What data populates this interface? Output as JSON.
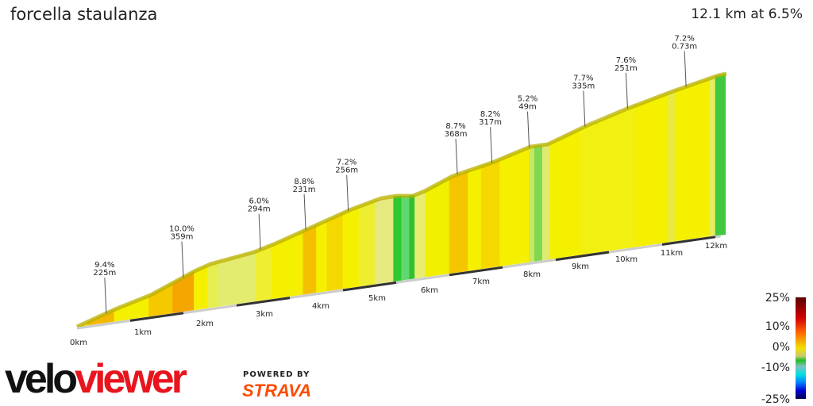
{
  "header": {
    "title": "forcella staulanza",
    "summary": "12.1 km at 6.5%"
  },
  "chart_data": {
    "type": "area",
    "title": "forcella staulanza",
    "distance_km": 12.1,
    "avg_gradient_pct": 6.5,
    "x_ticks": [
      "0km",
      "1km",
      "2km",
      "3km",
      "4km",
      "5km",
      "6km",
      "7km",
      "8km",
      "9km",
      "10km",
      "11km",
      "12km"
    ],
    "annotations": [
      {
        "km": 0.55,
        "gradient": "9.4%",
        "length": "225m"
      },
      {
        "km": 2.0,
        "gradient": "10.0%",
        "length": "359m"
      },
      {
        "km": 3.45,
        "gradient": "6.0%",
        "length": "294m"
      },
      {
        "km": 4.3,
        "gradient": "8.8%",
        "length": "231m"
      },
      {
        "km": 5.1,
        "gradient": "7.2%",
        "length": "256m"
      },
      {
        "km": 7.15,
        "gradient": "8.7%",
        "length": "368m"
      },
      {
        "km": 7.8,
        "gradient": "8.2%",
        "length": "317m"
      },
      {
        "km": 8.5,
        "gradient": "5.2%",
        "length": "49m"
      },
      {
        "km": 9.55,
        "gradient": "7.7%",
        "length": "335m"
      },
      {
        "km": 10.35,
        "gradient": "7.6%",
        "length": "251m"
      },
      {
        "km": 11.45,
        "gradient": "7.2%",
        "length": "0.73m"
      }
    ],
    "segments": [
      {
        "from": 0,
        "to": 0.2,
        "color": "#f0e020"
      },
      {
        "from": 0.2,
        "to": 0.7,
        "color": "#f5b800"
      },
      {
        "from": 0.7,
        "to": 1.35,
        "color": "#f5f000"
      },
      {
        "from": 1.35,
        "to": 1.8,
        "color": "#f5c800"
      },
      {
        "from": 1.8,
        "to": 2.2,
        "color": "#f5a500"
      },
      {
        "from": 2.2,
        "to": 2.45,
        "color": "#f5f000"
      },
      {
        "from": 2.45,
        "to": 2.65,
        "color": "#e6ee50"
      },
      {
        "from": 2.65,
        "to": 3.35,
        "color": "#e4ec70"
      },
      {
        "from": 3.35,
        "to": 3.65,
        "color": "#f0ee30"
      },
      {
        "from": 3.65,
        "to": 4.25,
        "color": "#f5f000"
      },
      {
        "from": 4.25,
        "to": 4.5,
        "color": "#f5c000"
      },
      {
        "from": 4.5,
        "to": 4.7,
        "color": "#f5f000"
      },
      {
        "from": 4.7,
        "to": 5.0,
        "color": "#f5d800"
      },
      {
        "from": 5.0,
        "to": 5.3,
        "color": "#f5f000"
      },
      {
        "from": 5.3,
        "to": 5.6,
        "color": "#eeee30"
      },
      {
        "from": 5.6,
        "to": 5.95,
        "color": "#e6e880"
      },
      {
        "from": 5.95,
        "to": 6.1,
        "color": "#30c830"
      },
      {
        "from": 6.1,
        "to": 6.25,
        "color": "#60d870"
      },
      {
        "from": 6.25,
        "to": 6.35,
        "color": "#30c030"
      },
      {
        "from": 6.35,
        "to": 6.55,
        "color": "#e8ec70"
      },
      {
        "from": 6.55,
        "to": 7.0,
        "color": "#f0f000"
      },
      {
        "from": 7.0,
        "to": 7.35,
        "color": "#f5c500"
      },
      {
        "from": 7.35,
        "to": 7.6,
        "color": "#f5f000"
      },
      {
        "from": 7.6,
        "to": 7.95,
        "color": "#f5d800"
      },
      {
        "from": 7.95,
        "to": 8.5,
        "color": "#f5f000"
      },
      {
        "from": 8.5,
        "to": 8.6,
        "color": "#c8e860"
      },
      {
        "from": 8.6,
        "to": 8.75,
        "color": "#80d850"
      },
      {
        "from": 8.75,
        "to": 8.9,
        "color": "#e0ea70"
      },
      {
        "from": 8.9,
        "to": 9.45,
        "color": "#f5f000"
      },
      {
        "from": 9.45,
        "to": 10.5,
        "color": "#f2f010"
      },
      {
        "from": 10.5,
        "to": 11.1,
        "color": "#f5f000"
      },
      {
        "from": 11.1,
        "to": 11.25,
        "color": "#e8ec40"
      },
      {
        "from": 11.25,
        "to": 11.9,
        "color": "#f5f000"
      },
      {
        "from": 11.9,
        "to": 12.0,
        "color": "#e8ec60"
      },
      {
        "from": 12.0,
        "to": 12.1,
        "color": "#40c840"
      }
    ],
    "legend": {
      "ticks": [
        "25%",
        "10%",
        "0%",
        "-10%",
        "-25%"
      ],
      "colors": [
        "#5a0000",
        "#d00000",
        "#ff6000",
        "#f0e000",
        "#c8c870",
        "#20c020",
        "#80c0c0",
        "#00e0e0",
        "#0080ff",
        "#0000d0",
        "#000050"
      ]
    }
  },
  "branding": {
    "logo": "veloviewer",
    "powered_by": "POWERED BY",
    "strava": "STRAVA",
    "logo_dark": "#111111",
    "logo_red": "#e8141e"
  }
}
